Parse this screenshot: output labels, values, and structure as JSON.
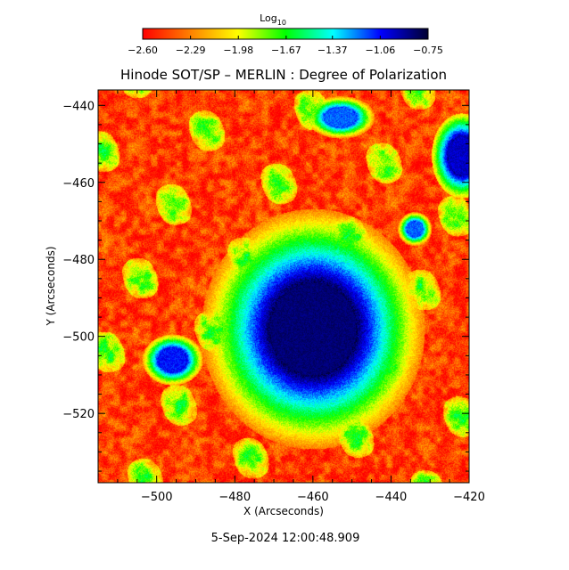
{
  "chart_data": {
    "type": "heatmap",
    "title": "Hinode SOT/SP – MERLIN : Degree of Polarization",
    "xlabel": "X (Arcseconds)",
    "ylabel": "Y (Arcseconds)",
    "xlim": [
      -515,
      -420
    ],
    "ylim": [
      -538,
      -436
    ],
    "x_ticks": [
      -500,
      -480,
      -460,
      -440,
      -420
    ],
    "x_tick_labels": [
      "−500",
      "−480",
      "−460",
      "−440",
      "−420"
    ],
    "y_ticks": [
      -440,
      -460,
      -480,
      -500,
      -520
    ],
    "y_tick_labels": [
      "−440",
      "−460",
      "−480",
      "−500",
      "−520"
    ],
    "colorbar": {
      "title": "Log",
      "title_subscript": "10",
      "range": [
        -2.6,
        -0.75
      ],
      "ticks": [
        -2.6,
        -2.29,
        -1.98,
        -1.67,
        -1.37,
        -1.06,
        -0.75
      ],
      "tick_labels": [
        "−2.60",
        "−2.29",
        "−1.98",
        "−1.67",
        "−1.37",
        "−1.06",
        "−0.75"
      ],
      "colormap": [
        "#ff0000",
        "#ff8000",
        "#ffff00",
        "#00ff00",
        "#00ffff",
        "#0000ff",
        "#000030"
      ]
    },
    "features": [
      {
        "kind": "umbra",
        "x": -460,
        "y": -498,
        "rx": 11,
        "ry": 12,
        "value": -0.8
      },
      {
        "kind": "pore",
        "x": -496,
        "y": -506,
        "rx": 3.5,
        "ry": 3,
        "value": -1.0
      },
      {
        "kind": "pore",
        "x": -453,
        "y": -443,
        "rx": 4,
        "ry": 2.5,
        "value": -1.1
      },
      {
        "kind": "pore",
        "x": -422,
        "y": -453,
        "rx": 3.5,
        "ry": 5,
        "value": -0.9
      },
      {
        "kind": "pore",
        "x": -434,
        "y": -472,
        "rx": 2,
        "ry": 2,
        "value": -1.1
      }
    ]
  },
  "footer": {
    "timestamp": "5-Sep-2024 12:00:48.909"
  }
}
